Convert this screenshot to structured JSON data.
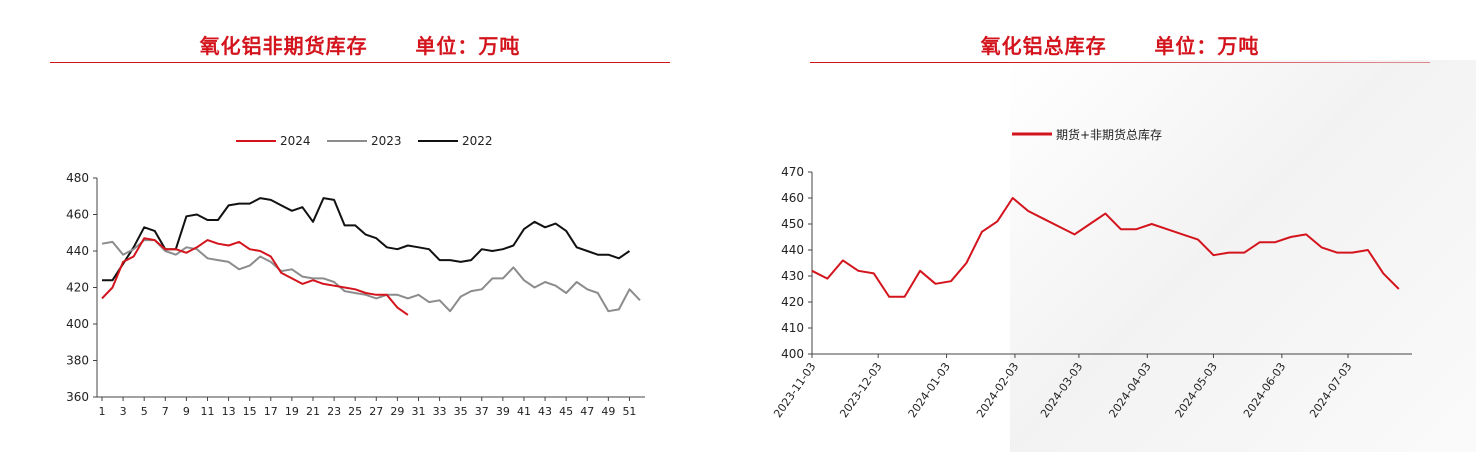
{
  "left": {
    "title": "氧化铝非期货库存      单位：万吨"
  },
  "right": {
    "title": "氧化铝总库存      单位：万吨"
  },
  "chart_data": [
    {
      "type": "line",
      "title": "氧化铝非期货库存      单位：万吨",
      "xlabel": "",
      "ylabel": "",
      "ylim": [
        360,
        480
      ],
      "yticks": [
        360,
        380,
        400,
        420,
        440,
        460,
        480
      ],
      "xticks": [
        1,
        3,
        5,
        7,
        9,
        11,
        13,
        15,
        17,
        19,
        21,
        23,
        25,
        27,
        29,
        31,
        33,
        35,
        37,
        39,
        41,
        43,
        45,
        47,
        49,
        51
      ],
      "legend_position": "top-center",
      "grid": false,
      "series": [
        {
          "name": "2024",
          "color": "#d4141d",
          "x": [
            1,
            2,
            3,
            4,
            5,
            6,
            7,
            8,
            9,
            10,
            11,
            12,
            13,
            14,
            15,
            16,
            17,
            18,
            19,
            20,
            21,
            22,
            23,
            24,
            25,
            26,
            27,
            28,
            29,
            30
          ],
          "values": [
            414,
            420,
            434,
            437,
            447,
            446,
            441,
            441,
            439,
            442,
            446,
            444,
            443,
            445,
            441,
            440,
            437,
            428,
            425,
            422,
            424,
            422,
            421,
            420,
            419,
            417,
            416,
            416,
            409,
            405
          ]
        },
        {
          "name": "2023",
          "color": "#8c8c8c",
          "x": [
            1,
            2,
            3,
            4,
            5,
            6,
            7,
            8,
            9,
            10,
            11,
            12,
            13,
            14,
            15,
            16,
            17,
            18,
            19,
            20,
            21,
            22,
            23,
            24,
            25,
            26,
            27,
            28,
            29,
            30,
            31,
            32,
            33,
            34,
            35,
            36,
            37,
            38,
            39,
            40,
            41,
            42,
            43,
            44,
            45,
            46,
            47,
            48,
            49,
            50,
            51,
            52
          ],
          "values": [
            444,
            445,
            438,
            441,
            446,
            446,
            440,
            438,
            442,
            441,
            436,
            435,
            434,
            430,
            432,
            437,
            434,
            429,
            430,
            426,
            425,
            425,
            423,
            418,
            417,
            416,
            414,
            416,
            416,
            414,
            416,
            412,
            413,
            407,
            415,
            418,
            419,
            425,
            425,
            431,
            424,
            420,
            423,
            421,
            417,
            423,
            419,
            417,
            407,
            408,
            419,
            413
          ]
        },
        {
          "name": "2022",
          "color": "#111111",
          "x": [
            1,
            2,
            3,
            4,
            5,
            6,
            7,
            8,
            9,
            10,
            11,
            12,
            13,
            14,
            15,
            16,
            17,
            18,
            19,
            20,
            21,
            22,
            23,
            24,
            25,
            26,
            27,
            28,
            29,
            30,
            31,
            32,
            33,
            34,
            35,
            36,
            37,
            38,
            39,
            40,
            41,
            42,
            43,
            44,
            45,
            46,
            47,
            48,
            49,
            50,
            51
          ],
          "values": [
            424,
            424,
            433,
            442,
            453,
            451,
            441,
            441,
            459,
            460,
            457,
            457,
            465,
            466,
            466,
            469,
            468,
            465,
            462,
            464,
            456,
            469,
            468,
            454,
            454,
            449,
            447,
            442,
            441,
            443,
            442,
            441,
            435,
            435,
            434,
            435,
            441,
            440,
            441,
            443,
            452,
            456,
            453,
            455,
            451,
            442,
            440,
            438,
            438,
            436,
            440
          ]
        }
      ]
    },
    {
      "type": "line",
      "title": "氧化铝总库存      单位：万吨",
      "xlabel": "",
      "ylabel": "",
      "ylim": [
        400,
        470
      ],
      "yticks": [
        400,
        410,
        420,
        430,
        440,
        450,
        460,
        470
      ],
      "xtick_labels": [
        "2023-11-03",
        "2023-12-03",
        "2024-01-03",
        "2024-02-03",
        "2024-03-03",
        "2024-04-03",
        "2024-05-03",
        "2024-06-03",
        "2024-07-03"
      ],
      "legend_position": "top-center",
      "grid": false,
      "series": [
        {
          "name": "期货+非期货总库存",
          "color": "#d4141d",
          "x": [
            "2023-11-03",
            "2023-11-10",
            "2023-11-17",
            "2023-11-24",
            "2023-12-01",
            "2023-12-08",
            "2023-12-15",
            "2023-12-22",
            "2023-12-29",
            "2024-01-05",
            "2024-01-12",
            "2024-01-19",
            "2024-01-26",
            "2024-02-02",
            "2024-02-09",
            "2024-02-16",
            "2024-02-23",
            "2024-03-01",
            "2024-03-08",
            "2024-03-15",
            "2024-03-22",
            "2024-03-29",
            "2024-04-05",
            "2024-04-12",
            "2024-04-19",
            "2024-04-26",
            "2024-05-03",
            "2024-05-10",
            "2024-05-17",
            "2024-05-24",
            "2024-05-31",
            "2024-06-07",
            "2024-06-14",
            "2024-06-21",
            "2024-06-28",
            "2024-07-05",
            "2024-07-12",
            "2024-07-19",
            "2024-07-26"
          ],
          "values": [
            432,
            429,
            436,
            432,
            431,
            422,
            422,
            432,
            427,
            428,
            435,
            447,
            451,
            460,
            455,
            452,
            449,
            446,
            450,
            454,
            448,
            448,
            450,
            448,
            446,
            444,
            438,
            439,
            439,
            443,
            443,
            445,
            446,
            441,
            439,
            439,
            440,
            431,
            425
          ]
        }
      ]
    }
  ]
}
